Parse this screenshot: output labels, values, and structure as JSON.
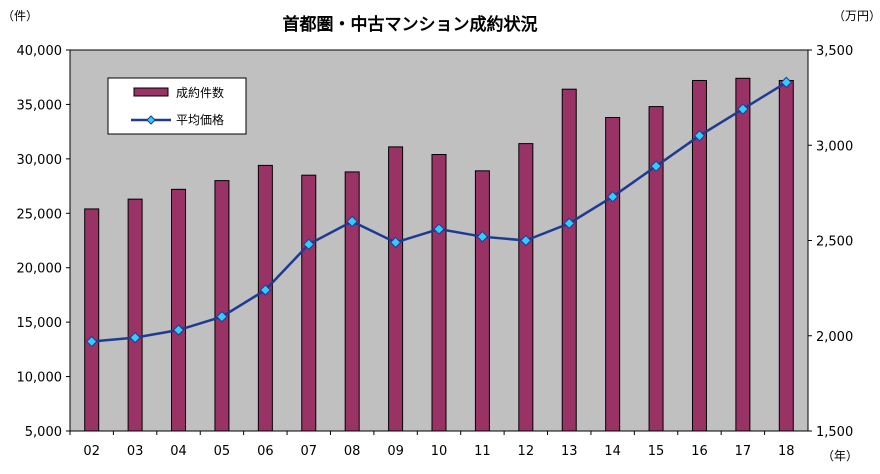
{
  "chart_data": {
    "type": "bar+line",
    "title": "首都圏・中古マンション成約状況",
    "left_unit": "（件）",
    "right_unit": "（万円）",
    "x_unit": "（年）",
    "categories": [
      "02",
      "03",
      "04",
      "05",
      "06",
      "07",
      "08",
      "09",
      "10",
      "11",
      "12",
      "13",
      "14",
      "15",
      "16",
      "17",
      "18"
    ],
    "left_ylim": [
      5000,
      40000
    ],
    "left_ticks": [
      "5,000",
      "10,000",
      "15,000",
      "20,000",
      "25,000",
      "30,000",
      "35,000",
      "40,000"
    ],
    "right_ylim": [
      1500,
      3500
    ],
    "right_ticks": [
      "1,500",
      "2,000",
      "2,500",
      "3,000",
      "3,500"
    ],
    "series": [
      {
        "name": "成約件数",
        "kind": "bar",
        "axis": "left",
        "color": "#993366",
        "values": [
          25400,
          26300,
          27200,
          28000,
          29400,
          28500,
          28800,
          31100,
          30400,
          28900,
          31400,
          36400,
          33800,
          34800,
          37200,
          37400,
          37200
        ]
      },
      {
        "name": "平均価格",
        "kind": "line",
        "axis": "right",
        "color": "#1f3a93",
        "marker_color": "#33ccff",
        "values": [
          1970,
          1990,
          2030,
          2100,
          2240,
          2480,
          2600,
          2490,
          2560,
          2520,
          2500,
          2590,
          2730,
          2890,
          3050,
          3190,
          3330
        ]
      }
    ],
    "legend_position": "top-left",
    "plot_background": "#c0c0c0",
    "grid": false
  }
}
